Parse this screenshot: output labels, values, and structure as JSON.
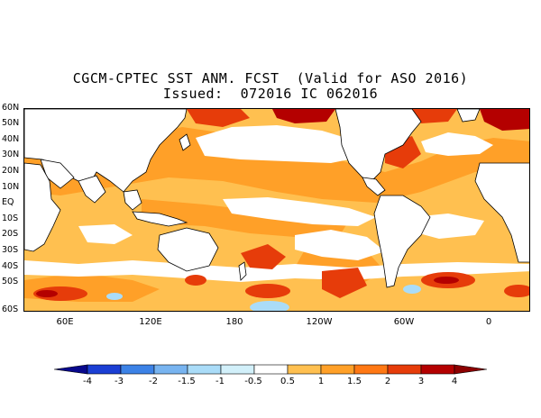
{
  "title": {
    "line1": "CGCM-CPTEC SST ANM. FCST  (Valid for ASO 2016)",
    "line2": "Issued:  072016 IC 062016"
  },
  "lat_labels": [
    "60N",
    "50N",
    "40N",
    "30N",
    "20N",
    "10N",
    "EQ",
    "10S",
    "20S",
    "30S",
    "40S",
    "50S",
    "60S"
  ],
  "lon_labels": [
    "60E",
    "120E",
    "180",
    "120W",
    "60W",
    "0"
  ],
  "colorbar": {
    "ticks": [
      "-4",
      "-3",
      "-2",
      "-1.5",
      "-1",
      "-0.5",
      "0.5",
      "1",
      "1.5",
      "2",
      "3",
      "4"
    ],
    "colors": [
      "#08088c",
      "#1b3fd4",
      "#3c82e6",
      "#78b4f0",
      "#aadcf8",
      "#d2f0fa",
      "#ffffff",
      "#ffc050",
      "#ffa028",
      "#ff7814",
      "#e63c0a",
      "#b40000",
      "#8c0000"
    ]
  },
  "chart_data": {
    "type": "heatmap",
    "title": "CGCM-CPTEC SST ANM. FCST  (Valid for ASO 2016)",
    "subtitle": "Issued:  072016 IC 062016",
    "variable": "Sea surface temperature anomaly forecast",
    "lon_range": [
      20,
      380
    ],
    "lat_range": [
      -60,
      60
    ],
    "levels": [
      -4,
      -3,
      -2,
      -1.5,
      -1,
      -0.5,
      0.5,
      1,
      1.5,
      2,
      3,
      4
    ]
  }
}
